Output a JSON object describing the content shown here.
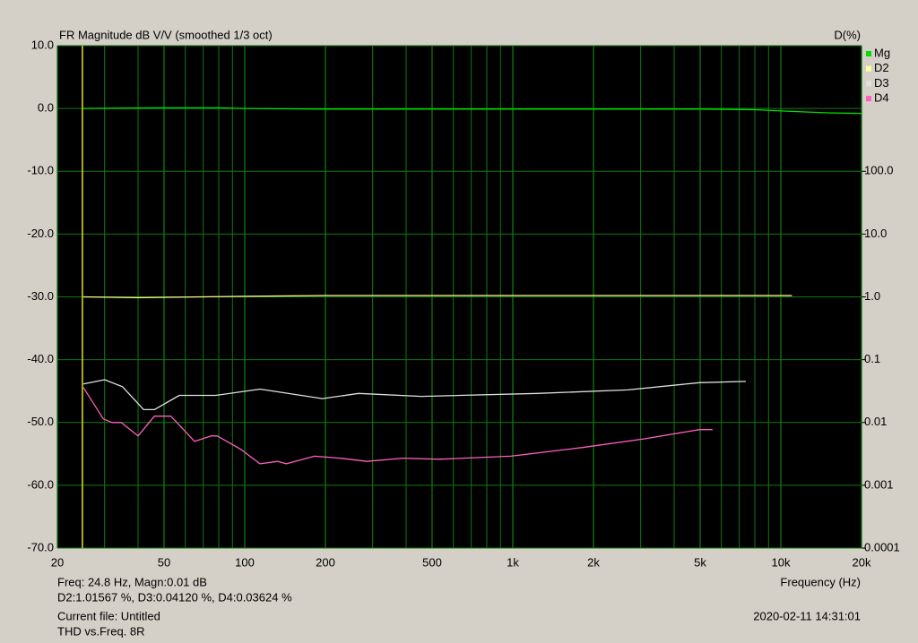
{
  "chart_data": {
    "type": "line",
    "title": "FR Magnitude dB V/V (smoothed 1/3 oct)",
    "y2_label": "D(%)",
    "x_label": "Frequency (Hz)",
    "x_log": true,
    "y2_log": true,
    "grid": true,
    "legend": "right",
    "xlim": [
      20,
      20000
    ],
    "xticks": [
      20,
      50,
      100,
      200,
      500,
      {
        "value": 1000,
        "label": "1k"
      },
      {
        "value": 2000,
        "label": "2k"
      },
      {
        "value": 5000,
        "label": "5k"
      },
      {
        "value": 10000,
        "label": "10k"
      },
      {
        "value": 20000,
        "label": "20k"
      }
    ],
    "x_minor_grid": [
      30,
      40,
      60,
      70,
      80,
      90,
      300,
      400,
      600,
      700,
      800,
      900,
      3000,
      4000,
      6000,
      7000,
      8000,
      9000
    ],
    "ylim": [
      -70,
      10
    ],
    "yticks": [
      {
        "value": 10,
        "label": "10.0"
      },
      {
        "value": 0,
        "label": "0.0"
      },
      {
        "value": -10,
        "label": "-10.0"
      },
      {
        "value": -20,
        "label": "-20.0"
      },
      {
        "value": -30,
        "label": "-30.0"
      },
      {
        "value": -40,
        "label": "-40.0"
      },
      {
        "value": -50,
        "label": "-50.0"
      },
      {
        "value": -60,
        "label": "-60.0"
      },
      {
        "value": -70,
        "label": "-70.0"
      }
    ],
    "y2lim": [
      0.0001,
      10000
    ],
    "y2ticks": [
      {
        "value": 100,
        "label": "100.0"
      },
      {
        "value": 10,
        "label": "10.0"
      },
      {
        "value": 1,
        "label": "1.0"
      },
      0.1,
      0.01,
      0.001,
      0.0001
    ],
    "cursor_x": 24.8,
    "cursor_color": "#e0e020",
    "series": [
      {
        "name": "Mg",
        "color": "#00e000",
        "x": [
          25,
          50,
          80,
          100,
          200,
          1000,
          5000,
          8000,
          10000,
          15000,
          20000
        ],
        "values": [
          0.0,
          0.1,
          0.1,
          0.0,
          -0.1,
          -0.1,
          -0.1,
          -0.2,
          -0.4,
          -0.7,
          -0.8
        ]
      },
      {
        "name": "D2",
        "color": "#ffff99",
        "axis": "y2",
        "x": [
          25,
          40,
          100,
          200,
          1000,
          8000,
          11000
        ],
        "values": [
          1.0,
          0.97,
          1.02,
          1.05,
          1.05,
          1.05,
          1.05
        ]
      },
      {
        "name": "D3",
        "color": "#e0e0e0",
        "axis": "y2",
        "x": [
          25,
          30,
          35,
          42,
          46,
          57,
          78,
          114,
          195,
          266,
          456,
          1240,
          2680,
          4970,
          7400
        ],
        "values": [
          0.041,
          0.048,
          0.037,
          0.016,
          0.016,
          0.027,
          0.027,
          0.034,
          0.024,
          0.029,
          0.026,
          0.029,
          0.033,
          0.043,
          0.045
        ]
      },
      {
        "name": "D4",
        "color": "#ff60c0",
        "axis": "y2",
        "x": [
          25,
          29.7,
          32,
          34.6,
          40,
          46,
          53,
          65,
          75,
          79,
          97,
          114,
          133,
          143,
          182,
          227,
          286,
          389,
          532,
          982,
          1820,
          3100,
          4970,
          5560
        ],
        "values": [
          0.036,
          0.0114,
          0.01,
          0.01,
          0.0061,
          0.0126,
          0.0126,
          0.005,
          0.0061,
          0.0061,
          0.0037,
          0.0022,
          0.0024,
          0.0022,
          0.0029,
          0.0027,
          0.0024,
          0.0027,
          0.0026,
          0.0029,
          0.004,
          0.0055,
          0.0077,
          0.0077
        ]
      }
    ]
  },
  "footer": {
    "cursor_line": "Freq: 24.8 Hz, Magn:0.01 dB",
    "distortion_line": "D2:1.01567 %, D3:0.04120 %, D4:0.03624 %",
    "current_file": "Current file: Untitled",
    "measurement": "THD vs.Freq. 8R",
    "timestamp": "2020-02-11  14:31:01"
  }
}
